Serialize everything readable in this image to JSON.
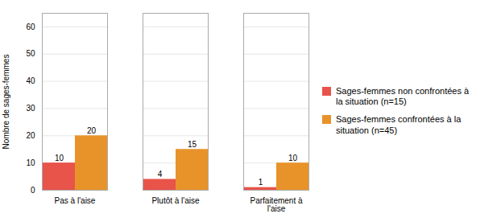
{
  "chart_data": {
    "type": "bar",
    "categories": [
      "Pas à l'aise",
      "Plutôt à l'aise",
      "Parfaitement à\nl'aise"
    ],
    "series": [
      {
        "name": "Sages-femmes non confrontées à\nla situation (n=15)",
        "color": "#e8534a",
        "values": [
          10,
          4,
          1
        ]
      },
      {
        "name": "Sages-femmes confrontées à la\nsituation (n=45)",
        "color": "#e8932a",
        "values": [
          20,
          15,
          10
        ]
      }
    ],
    "ylabel": "Nombre de sages-femmes",
    "ylim": [
      0,
      65
    ],
    "yticks": [
      0,
      10,
      20,
      30,
      40,
      50,
      60
    ],
    "grid": true,
    "data_labels": true,
    "legend": "right"
  }
}
